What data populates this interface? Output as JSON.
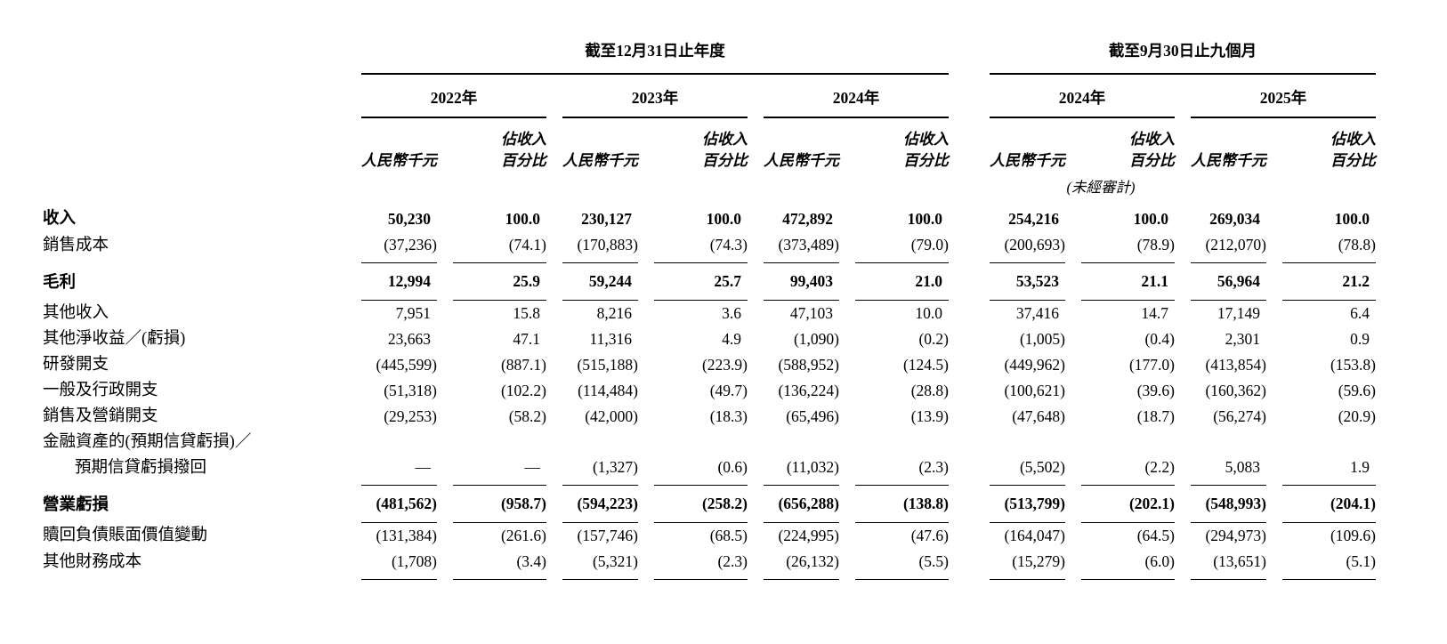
{
  "page": {
    "background_color": "#ffffff",
    "text_color": "#000000",
    "rule_color": "#000000"
  },
  "table": {
    "period_groups": [
      {
        "label": "截至12月31日止年度",
        "years": [
          "2022年",
          "2023年",
          "2024年"
        ]
      },
      {
        "label": "截至9月30日止九個月",
        "years": [
          "2024年",
          "2025年"
        ]
      }
    ],
    "column_headers": {
      "amount": "人民幣千元",
      "percent_line1": "佔收入",
      "percent_line2": "百分比"
    },
    "unaudited_note": "(未經審計)",
    "rows": [
      {
        "label": "收入",
        "bold": true,
        "values": [
          "50,230",
          "100.0",
          "230,127",
          "100.0",
          "472,892",
          "100.0",
          "254,216",
          "100.0",
          "269,034",
          "100.0"
        ]
      },
      {
        "label": "銷售成本",
        "rule_below": true,
        "values": [
          "(37,236)",
          "(74.1)",
          "(170,883)",
          "(74.3)",
          "(373,489)",
          "(79.0)",
          "(200,693)",
          "(78.9)",
          "(212,070)",
          "(78.8)"
        ]
      },
      {
        "label": "毛利",
        "bold": true,
        "rule_below": true,
        "tall": true,
        "values": [
          "12,994",
          "25.9",
          "59,244",
          "25.7",
          "99,403",
          "21.0",
          "53,523",
          "21.1",
          "56,964",
          "21.2"
        ]
      },
      {
        "label": "其他收入",
        "values": [
          "7,951",
          "15.8",
          "8,216",
          "3.6",
          "47,103",
          "10.0",
          "37,416",
          "14.7",
          "17,149",
          "6.4"
        ]
      },
      {
        "label": "其他淨收益／(虧損)",
        "values": [
          "23,663",
          "47.1",
          "11,316",
          "4.9",
          "(1,090)",
          "(0.2)",
          "(1,005)",
          "(0.4)",
          "2,301",
          "0.9"
        ]
      },
      {
        "label": "研發開支",
        "values": [
          "(445,599)",
          "(887.1)",
          "(515,188)",
          "(223.9)",
          "(588,952)",
          "(124.5)",
          "(449,962)",
          "(177.0)",
          "(413,854)",
          "(153.8)"
        ]
      },
      {
        "label": "一般及行政開支",
        "values": [
          "(51,318)",
          "(102.2)",
          "(114,484)",
          "(49.7)",
          "(136,224)",
          "(28.8)",
          "(100,621)",
          "(39.6)",
          "(160,362)",
          "(59.6)"
        ]
      },
      {
        "label": "銷售及營銷開支",
        "values": [
          "(29,253)",
          "(58.2)",
          "(42,000)",
          "(18.3)",
          "(65,496)",
          "(13.9)",
          "(47,648)",
          "(18.7)",
          "(56,274)",
          "(20.9)"
        ]
      },
      {
        "label": "金融資產的(預期信貸虧損)／",
        "label_line2": "預期信貸虧損撥回",
        "rule_below": true,
        "values": [
          "—",
          "—",
          "(1,327)",
          "(0.6)",
          "(11,032)",
          "(2.3)",
          "(5,502)",
          "(2.2)",
          "5,083",
          "1.9"
        ]
      },
      {
        "label": "營業虧損",
        "bold": true,
        "rule_below": true,
        "tall": true,
        "values": [
          "(481,562)",
          "(958.7)",
          "(594,223)",
          "(258.2)",
          "(656,288)",
          "(138.8)",
          "(513,799)",
          "(202.1)",
          "(548,993)",
          "(204.1)"
        ]
      },
      {
        "label": "贖回負債賬面價值變動",
        "values": [
          "(131,384)",
          "(261.6)",
          "(157,746)",
          "(68.5)",
          "(224,995)",
          "(47.6)",
          "(164,047)",
          "(64.5)",
          "(294,973)",
          "(109.6)"
        ]
      },
      {
        "label": "其他財務成本",
        "rule_below": true,
        "values": [
          "(1,708)",
          "(3.4)",
          "(5,321)",
          "(2.3)",
          "(26,132)",
          "(5.5)",
          "(15,279)",
          "(6.0)",
          "(13,651)",
          "(5.1)"
        ]
      }
    ]
  }
}
